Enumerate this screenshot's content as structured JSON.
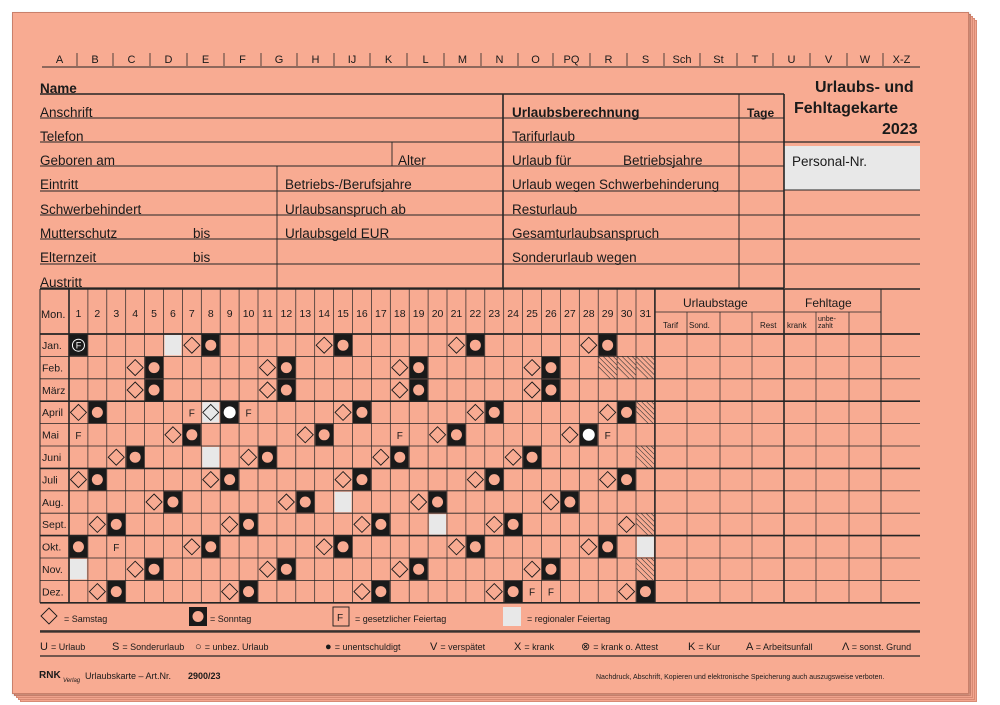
{
  "columns_header": [
    "A",
    "B",
    "C",
    "D",
    "E",
    "F",
    "G",
    "H",
    "IJ",
    "K",
    "L",
    "M",
    "N",
    "O",
    "PQ",
    "R",
    "S",
    "Sch",
    "St",
    "T",
    "U",
    "V",
    "W",
    "X-Z"
  ],
  "title": {
    "line1": "Urlaubs- und",
    "line2": "Fehltagekarte",
    "year": "2023"
  },
  "personal_nr": "Personal-Nr.",
  "left_fields": {
    "name": "Name",
    "anschrift": "Anschrift",
    "telefon": "Telefon",
    "geboren": "Geboren am",
    "alter": "Alter",
    "eintritt": "Eintritt",
    "betriebsjahre": "Betriebs-/Berufsjahre",
    "schwerbehindert": "Schwerbehindert",
    "urlaubsanspruch_ab": "Urlaubsanspruch ab",
    "mutterschutz": "Mutterschutz",
    "bis1": "bis",
    "urlaubsgeld": "Urlaubsgeld EUR",
    "elternzeit": "Elternzeit",
    "bis2": "bis",
    "austritt": "Austritt"
  },
  "urlaubsberechnung": {
    "header": "Urlaubsberechnung",
    "tage": "Tage",
    "rows": [
      "Tarifurlaub",
      "Urlaub für",
      "Urlaub wegen Schwerbehinderung",
      "Resturlaub",
      "Gesamturlaubsanspruch",
      "Sonderurlaub wegen"
    ],
    "betriebsjahre": "Betriebsjahre"
  },
  "calendar": {
    "mon_label": "Mon.",
    "days": [
      "1",
      "2",
      "3",
      "4",
      "5",
      "6",
      "7",
      "8",
      "9",
      "10",
      "11",
      "12",
      "13",
      "14",
      "15",
      "16",
      "17",
      "18",
      "19",
      "20",
      "21",
      "22",
      "23",
      "24",
      "25",
      "26",
      "27",
      "28",
      "29",
      "30",
      "31"
    ],
    "months": [
      "Jan.",
      "Feb.",
      "März",
      "April",
      "Mai",
      "Juni",
      "Juli",
      "Aug.",
      "Sept.",
      "Okt.",
      "Nov.",
      "Dez."
    ],
    "month_days": [
      31,
      28,
      31,
      30,
      31,
      30,
      31,
      31,
      30,
      31,
      30,
      31
    ],
    "first_weekday": [
      7,
      3,
      3,
      6,
      1,
      4,
      6,
      2,
      5,
      7,
      3,
      5
    ],
    "feiertag_letter": "F",
    "public_holidays": [
      [
        1,
        1
      ],
      [
        4,
        7
      ],
      [
        4,
        10
      ],
      [
        5,
        1
      ],
      [
        5,
        18
      ],
      [
        5,
        29
      ],
      [
        10,
        3
      ],
      [
        12,
        25
      ],
      [
        12,
        26
      ]
    ],
    "regional_holidays": [
      [
        1,
        6
      ],
      [
        4,
        8
      ],
      [
        6,
        8
      ],
      [
        8,
        15
      ],
      [
        9,
        20
      ],
      [
        10,
        31
      ],
      [
        11,
        1
      ]
    ],
    "sunday_holidays": [
      [
        1,
        1
      ],
      [
        4,
        9
      ],
      [
        5,
        28
      ]
    ],
    "urlaubstage_header": "Urlaubstage",
    "fehltage_header": "Fehltage",
    "sub_headers": [
      "Tarif",
      "Sond.",
      "",
      "Rest",
      "krank",
      "unbe-zahlt"
    ]
  },
  "legend": {
    "samstag": "= Samstag",
    "sonntag": "= Sonntag",
    "feiertag_box": "F",
    "feiertag": "= gesetzlicher Feiertag",
    "regional": "= regionaler Feiertag"
  },
  "codes": [
    {
      "sym": "U",
      "text": "= Urlaub"
    },
    {
      "sym": "S",
      "text": "= Sonderurlaub"
    },
    {
      "sym": "○",
      "text": "= unbez. Urlaub"
    },
    {
      "sym": "●",
      "text": "= unentschuldigt"
    },
    {
      "sym": "V",
      "text": "= verspätet"
    },
    {
      "sym": "X",
      "text": "= krank"
    },
    {
      "sym": "⊗",
      "text": "= krank o. Attest"
    },
    {
      "sym": "K",
      "text": "= Kur"
    },
    {
      "sym": "A",
      "text": "= Arbeitsunfall"
    },
    {
      "sym": "Λ",
      "text": "= sonst. Grund"
    }
  ],
  "footer": {
    "logo": "RNK",
    "logo_sub": "Verlag",
    "article": "Urlaubskarte – Art.Nr.",
    "artnr": "2900/23",
    "copyright": "Nachdruck, Abschrift, Kopieren und elektronische Speicherung auch auszugsweise verboten."
  },
  "colors": {
    "card": "#f8ab92",
    "edge": "#f3a68f",
    "regional": "#e8e8e8",
    "ink": "#1a1a1a"
  }
}
